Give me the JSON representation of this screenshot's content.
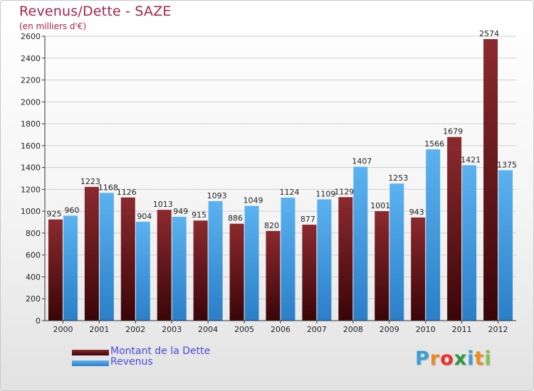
{
  "chart_data": {
    "type": "bar",
    "title": "Revenus/Dette - SAZE",
    "subtitle": "(en milliers d'€)",
    "categories": [
      "2000",
      "2001",
      "2002",
      "2003",
      "2004",
      "2005",
      "2006",
      "2007",
      "2008",
      "2009",
      "2010",
      "2011",
      "2012"
    ],
    "series": [
      {
        "name": "Montant de la Dette",
        "color": "#7a1a1f",
        "values": [
          925,
          1223,
          1126,
          1013,
          915,
          886,
          820,
          877,
          1129,
          1001,
          943,
          1679,
          2574
        ],
        "labels": [
          "925",
          "1223",
          "1126",
          "1013",
          "915",
          "886",
          "820",
          "877",
          "1129",
          "1001",
          "943",
          "1679",
          "2574"
        ]
      },
      {
        "name": "Revenus",
        "color": "#4aa3e8",
        "values": [
          960,
          1168,
          904,
          949,
          1093,
          1049,
          1124,
          1109,
          1407,
          1253,
          1566,
          1421,
          1375
        ],
        "labels": [
          "960",
          "1168",
          "904",
          "949",
          "1093",
          "1049",
          "1124",
          "1109",
          "1407",
          "1253",
          "1566",
          "1421",
          "1375"
        ]
      }
    ],
    "ylim": [
      0,
      2600
    ],
    "yticks": [
      0,
      200,
      400,
      600,
      800,
      1000,
      1200,
      1400,
      1600,
      1800,
      2000,
      2200,
      2400,
      2600
    ],
    "grid": true,
    "legend_position": "bottom-left"
  },
  "logo": {
    "letters": [
      "P",
      "r",
      "o",
      "x",
      "i",
      "t",
      "i"
    ],
    "colors": [
      "#3aa0d8",
      "#f08a1c",
      "#e8322a",
      "#2f9a3c",
      "#3aa0d8",
      "#f08a1c",
      "#8bc34a"
    ]
  }
}
